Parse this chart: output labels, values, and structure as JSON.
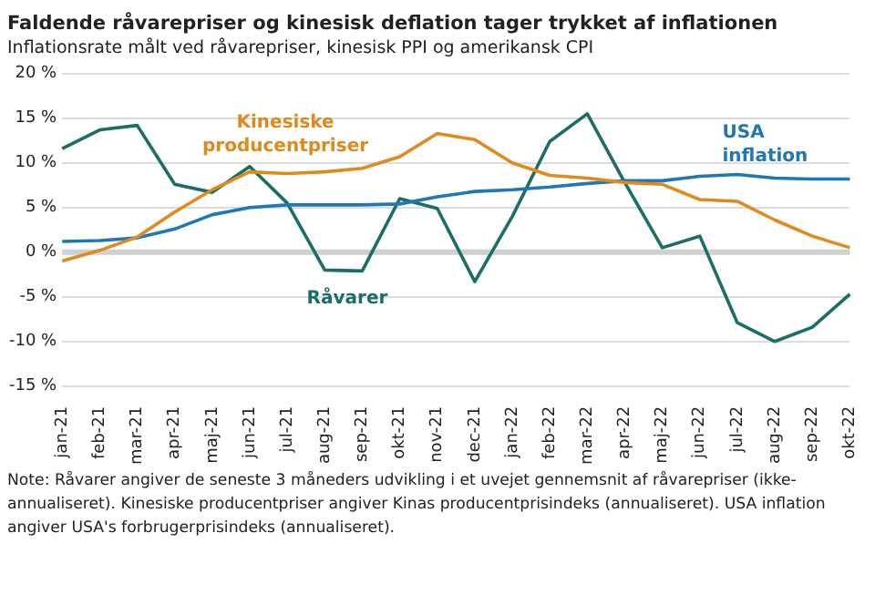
{
  "chart_data": {
    "type": "line",
    "title": "Faldende råvarepriser og kinesisk deflation tager trykket af inflationen",
    "subtitle": "Inflationsrate målt ved råvarepriser, kinesisk PPI og amerikansk CPI",
    "categories": [
      "jan-21",
      "feb-21",
      "mar-21",
      "apr-21",
      "maj-21",
      "jun-21",
      "jul-21",
      "aug-21",
      "sep-21",
      "okt-21",
      "nov-21",
      "dec-21",
      "jan-22",
      "feb-22",
      "mar-22",
      "apr-22",
      "maj-22",
      "jun-22",
      "jul-22",
      "aug-22",
      "sep-22",
      "okt-22"
    ],
    "series": [
      {
        "name": "Kinesiske producentpriser",
        "color": "#e08a1e",
        "values": [
          -1,
          0.2,
          1.7,
          4.5,
          7,
          9,
          8.8,
          9,
          9.4,
          10.7,
          13.3,
          12.6,
          10,
          8.6,
          8.3,
          7.8,
          7.6,
          5.9,
          5.7,
          3.6,
          1.8,
          0.5
        ]
      },
      {
        "name": "USA inflation",
        "color": "#1f77b4",
        "values": [
          1.2,
          1.3,
          1.6,
          2.6,
          4.2,
          5,
          5.3,
          5.3,
          5.3,
          5.4,
          6.2,
          6.8,
          7,
          7.3,
          7.7,
          8,
          8,
          8.5,
          8.7,
          8.3,
          8.2,
          8.2
        ]
      },
      {
        "name": "Råvarer",
        "color": "#1a6e66",
        "values": [
          11.6,
          13.7,
          14.2,
          7.6,
          6.7,
          9.6,
          5.5,
          -2,
          -2.1,
          6,
          4.9,
          -3.3,
          4,
          12.4,
          15.5,
          7.8,
          0.5,
          1.8,
          -7.9,
          -10,
          -8.4,
          -4.7
        ]
      }
    ],
    "ylim": [
      -15,
      20
    ],
    "yticks": [
      {
        "value": -15,
        "label": "-15 %"
      },
      {
        "value": -10,
        "label": "-10 %"
      },
      {
        "value": -5,
        "label": "-5 %"
      },
      {
        "value": 0,
        "label": "0 %"
      },
      {
        "value": 5,
        "label": "5 %"
      },
      {
        "value": 10,
        "label": "10 %"
      },
      {
        "value": 15,
        "label": "15 %"
      },
      {
        "value": 20,
        "label": "20 %"
      }
    ],
    "grid": "y",
    "legend": false,
    "marker": "none",
    "line_style": "solid",
    "ref_lines": [
      {
        "axis": "y",
        "value": 0,
        "color": "#d0d0d0"
      }
    ],
    "annotations": [
      "Note: Råvarer angiver de seneste 3 måneders udvikling i et uvejet gennemsnit af råvarepriser (ikke-annualiseret). Kinesiske producentpriser angiver Kinas producentprisindeks (annualiseret). USA inflation angiver USA's forbrugerprisindeks (annualiseret)."
    ]
  }
}
